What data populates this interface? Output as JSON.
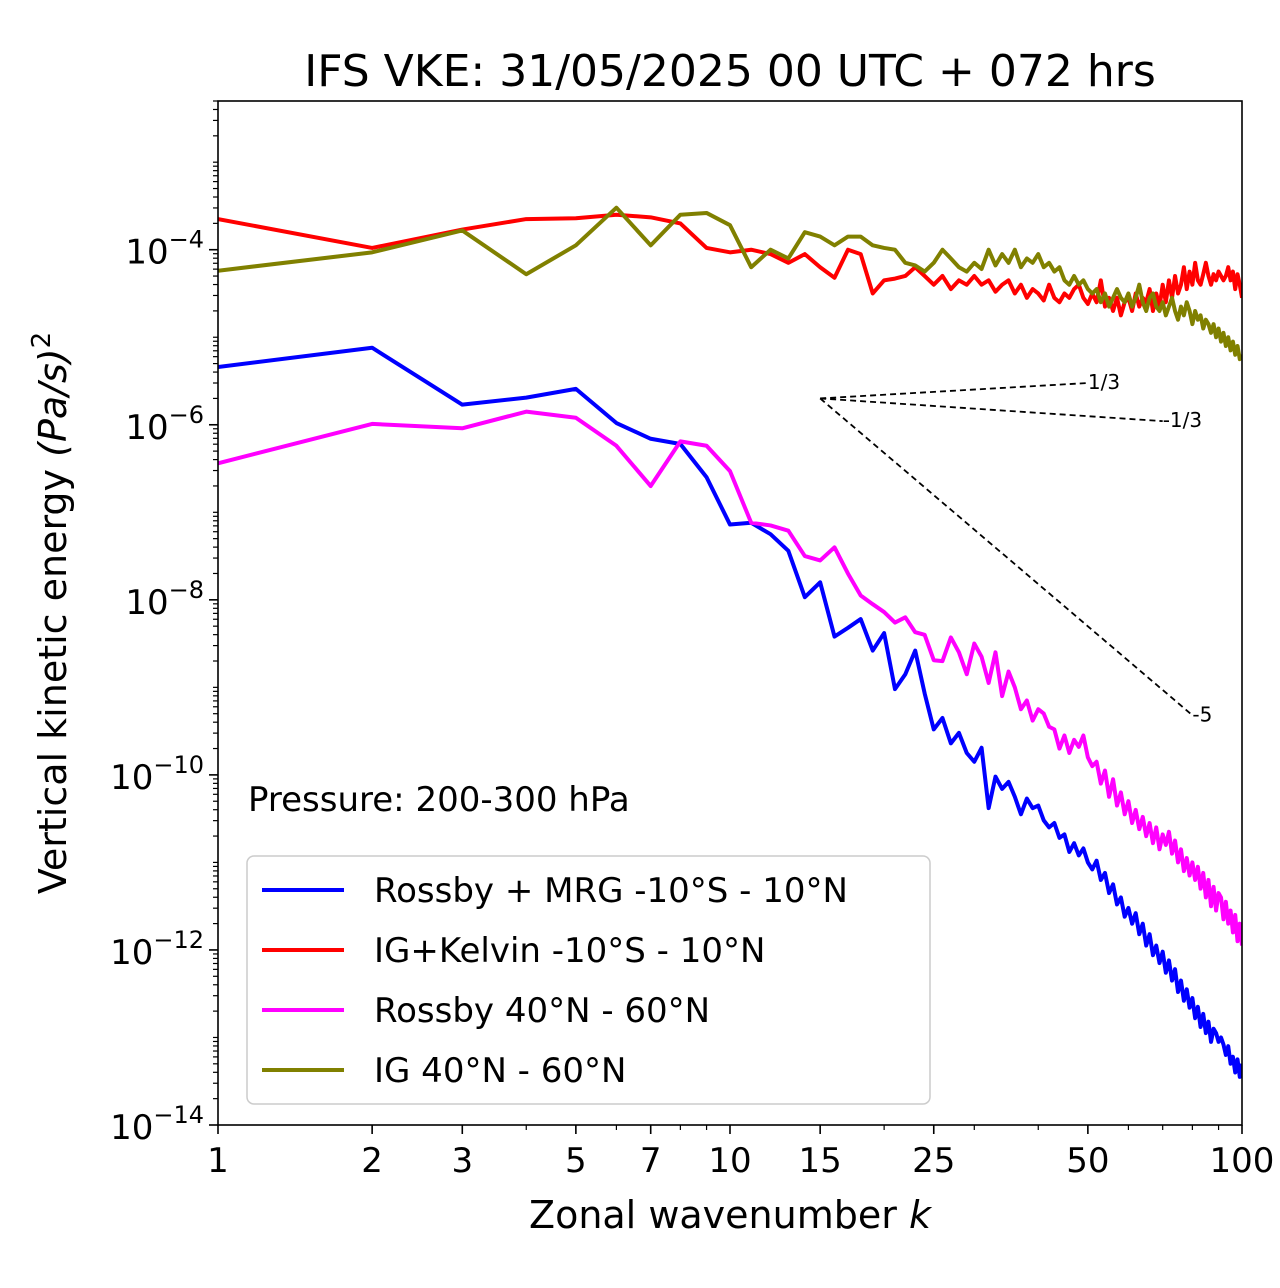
{
  "chart_data": {
    "type": "line",
    "title": "IFS VKE: 31/05/2025 00 UTC + 072 hrs",
    "xlabel": "Zonal wavenumber",
    "xlabel_var": "k",
    "ylabel": "Vertical kinetic energy",
    "ylabel_unit": "(Pa/s)",
    "ylabel_exp": "2",
    "xscale": "log",
    "yscale": "log",
    "xlim": [
      1,
      100
    ],
    "ylim": [
      1e-14,
      0.005
    ],
    "x_ticks": [
      1,
      2,
      3,
      5,
      7,
      10,
      15,
      25,
      50,
      100
    ],
    "x_tick_labels": [
      "1",
      "2",
      "3",
      "5",
      "7",
      "10",
      "15",
      "25",
      "50",
      "100"
    ],
    "y_ticks": [
      1e-14,
      1e-12,
      1e-10,
      1e-08,
      1e-06,
      0.0001
    ],
    "y_tick_base": "10",
    "y_tick_exponents": [
      "−14",
      "−12",
      "−10",
      "−8",
      "−6",
      "−4"
    ],
    "annotation": "Pressure: 200-300 hPa",
    "legend_position": "lower-left",
    "grid": false,
    "reference_slopes": [
      {
        "label": "1/3",
        "x0": 15,
        "y0": 2e-06,
        "x1": 50,
        "y1": 3e-06
      },
      {
        "label": "-1/3",
        "x0": 15,
        "y0": 2e-06,
        "x1": 70,
        "y1": 1.1e-06
      },
      {
        "label": "-5",
        "x0": 15,
        "y0": 2e-06,
        "x1": 80,
        "y1": 4.8e-10
      }
    ],
    "series": [
      {
        "name": "Rossby + MRG -10°S - 10°N",
        "color": "#0000ff",
        "y_log10": [
          -5.34,
          -5.12,
          -5.77,
          -5.69,
          -5.59,
          -5.98,
          -6.16,
          -6.22,
          -6.6,
          -7.14,
          -7.12,
          -7.25,
          -7.44,
          -7.97,
          -7.8,
          -8.42,
          -8.32,
          -8.22,
          -8.58,
          -8.38,
          -9.02,
          -8.85,
          -8.58,
          -9.07,
          -9.48,
          -9.35,
          -9.64,
          -9.52,
          -9.75,
          -9.85,
          -9.69,
          -10.38,
          -10.02,
          -10.16,
          -10.08,
          -10.25,
          -10.45,
          -10.27,
          -10.38,
          -10.35,
          -10.52,
          -10.6,
          -10.55,
          -10.72,
          -10.68,
          -10.88,
          -10.78,
          -10.92,
          -10.84,
          -11.0,
          -11.08,
          -10.98,
          -11.2,
          -11.12,
          -11.35,
          -11.25,
          -11.48,
          -11.4,
          -11.62,
          -11.52,
          -11.7,
          -11.58,
          -11.82,
          -11.7,
          -11.95,
          -11.82,
          -12.06,
          -11.95,
          -12.15,
          -12.02,
          -12.26,
          -12.12,
          -12.35,
          -12.22,
          -12.48,
          -12.35,
          -12.58,
          -12.45,
          -12.66,
          -12.55,
          -12.78,
          -12.65,
          -12.88,
          -12.73,
          -12.95,
          -12.82,
          -13.05,
          -12.9,
          -12.95,
          -13.05,
          -13.0,
          -13.08,
          -13.2,
          -13.1,
          -13.3,
          -13.22,
          -13.4,
          -13.25,
          -13.45,
          -13.3
        ]
      },
      {
        "name": "IG+Kelvin -10°S - 10°N",
        "color": "#ff0000",
        "y_log10": [
          -3.65,
          -3.98,
          -3.77,
          -3.65,
          -3.64,
          -3.6,
          -3.63,
          -3.7,
          -3.98,
          -4.03,
          -4.0,
          -4.05,
          -4.15,
          -4.05,
          -4.2,
          -4.32,
          -4.0,
          -4.05,
          -4.5,
          -4.35,
          -4.33,
          -4.3,
          -4.2,
          -4.3,
          -4.4,
          -4.3,
          -4.45,
          -4.35,
          -4.4,
          -4.3,
          -4.4,
          -4.35,
          -4.48,
          -4.4,
          -4.35,
          -4.5,
          -4.4,
          -4.55,
          -4.45,
          -4.5,
          -4.58,
          -4.4,
          -4.55,
          -4.6,
          -4.5,
          -4.55,
          -4.45,
          -4.4,
          -4.55,
          -4.62,
          -4.5,
          -4.6,
          -4.35,
          -4.65,
          -4.55,
          -4.7,
          -4.55,
          -4.75,
          -4.6,
          -4.55,
          -4.7,
          -4.5,
          -4.65,
          -4.55,
          -4.6,
          -4.45,
          -4.7,
          -4.5,
          -4.65,
          -4.4,
          -4.6,
          -4.35,
          -4.55,
          -4.3,
          -4.5,
          -4.4,
          -4.2,
          -4.45,
          -4.25,
          -4.4,
          -4.15,
          -4.35,
          -4.4,
          -4.28,
          -4.15,
          -4.3,
          -4.4,
          -4.28,
          -4.35,
          -4.25,
          -4.3,
          -4.35,
          -4.3,
          -4.2,
          -4.35,
          -4.25,
          -4.45,
          -4.28,
          -4.4,
          -4.55
        ]
      },
      {
        "name": "Rossby 40°N - 60°N",
        "color": "#ff00ff",
        "y_log10": [
          -6.44,
          -5.99,
          -6.04,
          -5.85,
          -5.92,
          -6.24,
          -6.7,
          -6.19,
          -6.24,
          -6.53,
          -7.12,
          -7.15,
          -7.21,
          -7.5,
          -7.55,
          -7.4,
          -7.7,
          -7.95,
          -8.05,
          -8.14,
          -8.26,
          -8.2,
          -8.37,
          -8.4,
          -8.69,
          -8.7,
          -8.43,
          -8.6,
          -8.85,
          -8.5,
          -8.65,
          -8.95,
          -8.6,
          -9.1,
          -8.82,
          -9.0,
          -9.25,
          -9.15,
          -9.38,
          -9.25,
          -9.3,
          -9.45,
          -9.48,
          -9.7,
          -9.55,
          -9.75,
          -9.6,
          -9.68,
          -9.55,
          -9.8,
          -9.9,
          -9.85,
          -10.1,
          -9.95,
          -10.25,
          -10.05,
          -10.35,
          -10.2,
          -10.45,
          -10.3,
          -10.55,
          -10.4,
          -10.62,
          -10.48,
          -10.7,
          -10.55,
          -10.78,
          -10.6,
          -10.85,
          -10.68,
          -10.8,
          -10.65,
          -10.9,
          -10.75,
          -11.0,
          -10.85,
          -11.1,
          -10.95,
          -11.15,
          -11.0,
          -11.2,
          -11.05,
          -11.3,
          -11.12,
          -11.4,
          -11.2,
          -11.5,
          -11.28,
          -11.55,
          -11.35,
          -11.4,
          -11.65,
          -11.45,
          -11.7,
          -11.55,
          -11.8,
          -11.6,
          -11.9,
          -11.7,
          -11.95
        ]
      },
      {
        "name": "IG 40°N - 60°N",
        "color": "#808000",
        "y_log10": [
          -4.24,
          -4.03,
          -3.78,
          -4.28,
          -3.95,
          -3.52,
          -3.95,
          -3.6,
          -3.58,
          -3.72,
          -4.2,
          -4.0,
          -4.1,
          -3.8,
          -3.85,
          -3.95,
          -3.85,
          -3.85,
          -3.95,
          -3.98,
          -4.0,
          -4.15,
          -4.18,
          -4.25,
          -4.15,
          -4.0,
          -4.1,
          -4.2,
          -4.25,
          -4.15,
          -4.22,
          -4.0,
          -4.18,
          -4.05,
          -4.15,
          -4.0,
          -4.2,
          -4.1,
          -4.15,
          -4.05,
          -4.2,
          -4.15,
          -4.25,
          -4.2,
          -4.35,
          -4.4,
          -4.3,
          -4.4,
          -4.35,
          -4.45,
          -4.5,
          -4.45,
          -4.6,
          -4.5,
          -4.65,
          -4.55,
          -4.45,
          -4.55,
          -4.6,
          -4.5,
          -4.65,
          -4.55,
          -4.4,
          -4.6,
          -4.7,
          -4.55,
          -4.5,
          -4.65,
          -4.7,
          -4.6,
          -4.75,
          -4.65,
          -4.55,
          -4.7,
          -4.8,
          -4.65,
          -4.75,
          -4.6,
          -4.7,
          -4.85,
          -4.7,
          -4.8,
          -4.75,
          -4.9,
          -4.8,
          -4.85,
          -4.95,
          -4.85,
          -5.0,
          -4.9,
          -5.05,
          -4.95,
          -5.1,
          -5.0,
          -5.15,
          -5.05,
          -5.2,
          -5.1,
          -5.25,
          -5.2
        ]
      }
    ]
  }
}
